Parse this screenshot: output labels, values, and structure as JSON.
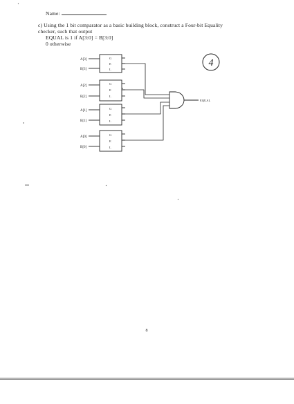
{
  "header": {
    "name_label": "Name:"
  },
  "question": {
    "line1": "c) Using the 1 bit comparator as a basic building block, construct a Four-bit Equality",
    "line2": "checker, such that output",
    "line3": "EQUAL is 1 if A[3:0] = B[3:0]",
    "line4": "0 otherwise"
  },
  "score_mark": "4",
  "diagram": {
    "comparators": [
      {
        "a_label": "A[3]",
        "b_label": "B[3]",
        "ports": [
          "G",
          "E",
          "L"
        ]
      },
      {
        "a_label": "A[2]",
        "b_label": "B[2]",
        "ports": [
          "G",
          "E",
          "L"
        ]
      },
      {
        "a_label": "A[1]",
        "b_label": "B[1]",
        "ports": [
          "G",
          "E",
          "L"
        ]
      },
      {
        "a_label": "A[0]",
        "b_label": "B[0]",
        "ports": [
          "G",
          "E",
          "L"
        ]
      }
    ],
    "output_label": "EQUAL"
  },
  "page_number": "8"
}
